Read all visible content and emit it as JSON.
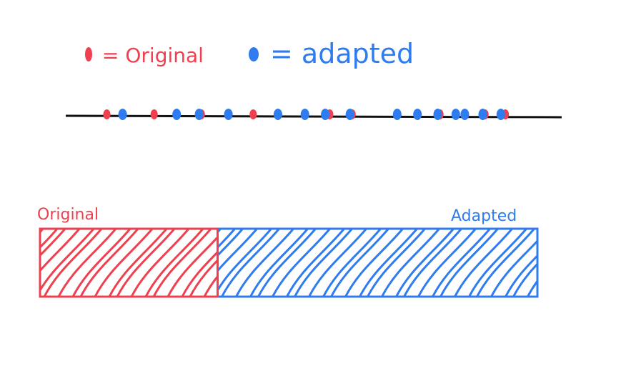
{
  "colors": {
    "original": "#f0404f",
    "adapted": "#2f7cf0",
    "axis": "#111111",
    "background": "#ffffff"
  },
  "legend": {
    "original_label": "= Original",
    "adapted_label": "= adapted"
  },
  "number_line": {
    "original_points": [
      0.05,
      0.155,
      0.26,
      0.375,
      0.49,
      0.545,
      0.595,
      0.79,
      0.845,
      0.89,
      0.935
    ],
    "adapted_points": [
      0.085,
      0.205,
      0.255,
      0.32,
      0.43,
      0.49,
      0.535,
      0.59,
      0.695,
      0.74,
      0.785,
      0.825,
      0.845,
      0.885,
      0.925
    ]
  },
  "bar": {
    "original_label": "Original",
    "adapted_label": "Adapted",
    "original_fraction": 0.357
  }
}
